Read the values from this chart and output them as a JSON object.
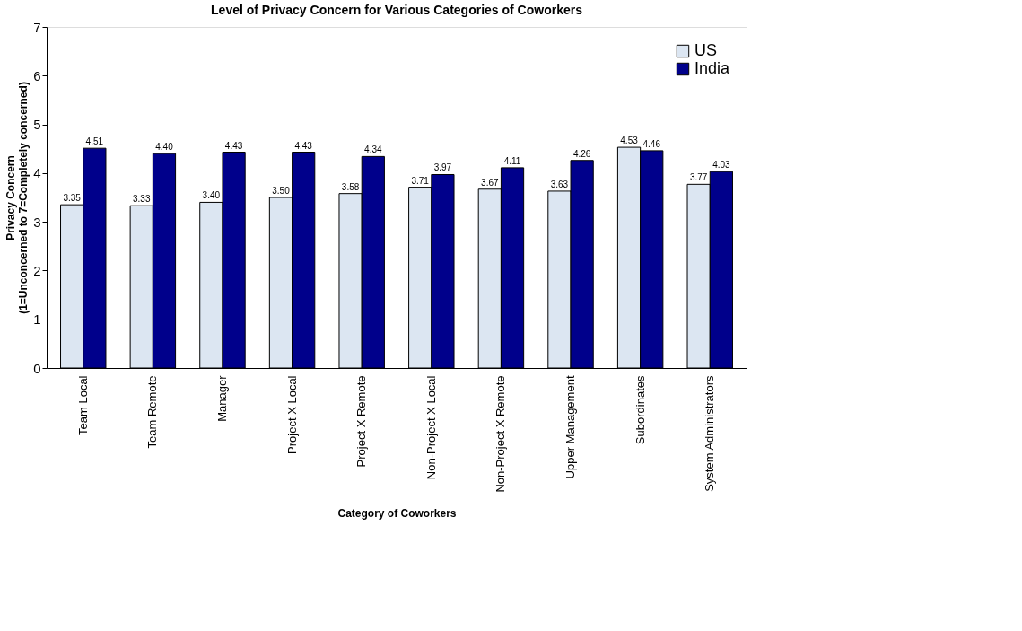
{
  "chart_data": {
    "type": "bar",
    "title": "Level of Privacy Concern for Various Categories of Coworkers",
    "xlabel": "Category of Coworkers",
    "ylabel": "Privacy Concern\n(1=Unconcerned to 7=Completely concerned)",
    "categories": [
      "Team Local",
      "Team Remote",
      "Manager",
      "Project X Local",
      "Project X Remote",
      "Non-Project X Local",
      "Non-Project X Remote",
      "Upper Management",
      "Subordinates",
      "System Administrators"
    ],
    "series": [
      {
        "name": "US",
        "color": "#dce6f2",
        "values": [
          3.35,
          3.33,
          3.4,
          3.5,
          3.58,
          3.71,
          3.67,
          3.63,
          4.53,
          3.77
        ],
        "value_labels": [
          "3.35",
          "3.33",
          "3.40",
          "3.50",
          "3.58",
          "3.71",
          "3.67",
          "3.63",
          "4.53",
          "3.77"
        ]
      },
      {
        "name": "India",
        "color": "#00008b",
        "values": [
          4.51,
          4.4,
          4.43,
          4.43,
          4.34,
          3.97,
          4.11,
          4.26,
          4.46,
          4.03
        ],
        "value_labels": [
          "4.51",
          "4.40",
          "4.43",
          "4.43",
          "4.34",
          "3.97",
          "4.11",
          "4.26",
          "4.46",
          "4.03"
        ]
      }
    ],
    "ylim": [
      0,
      7
    ],
    "yticks": [
      0,
      1,
      2,
      3,
      4,
      5,
      6,
      7
    ],
    "grid": false,
    "legend": "top right"
  }
}
